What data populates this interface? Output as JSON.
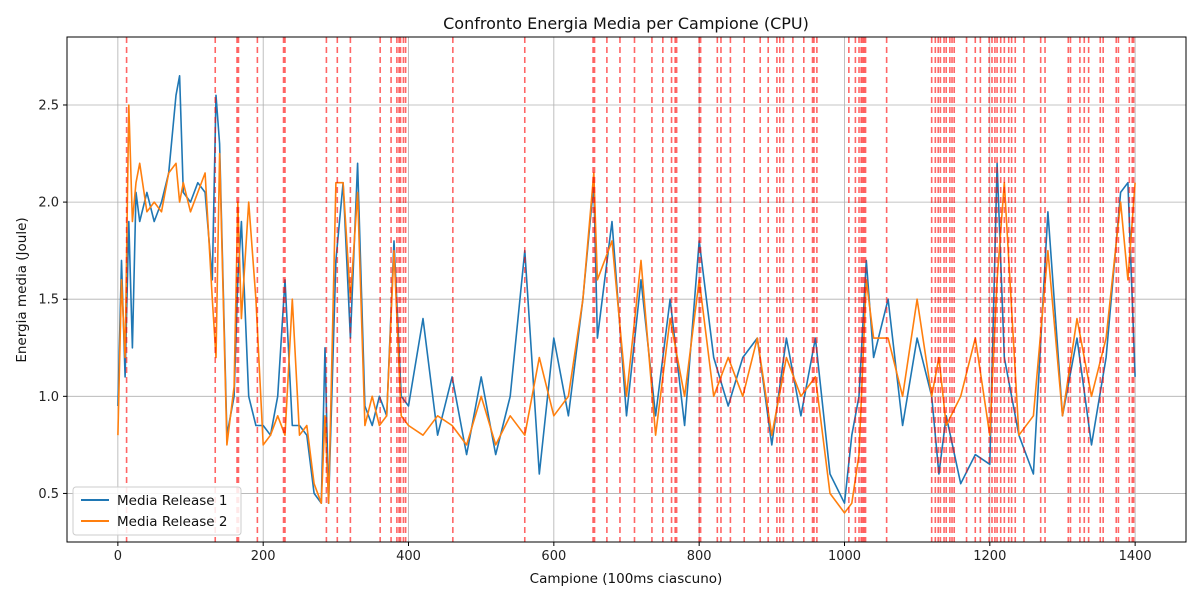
{
  "chart_data": {
    "type": "line",
    "title": "Confronto Energia Media per Campione (CPU)",
    "xlabel": "Campione (100ms ciascuno)",
    "ylabel": "Energia media (Joule)",
    "xlim": [
      -70,
      1470
    ],
    "ylim": [
      0.25,
      2.85
    ],
    "xticks": [
      0,
      200,
      400,
      600,
      800,
      1000,
      1200,
      1400
    ],
    "yticks": [
      0.5,
      1.0,
      1.5,
      2.0,
      2.5
    ],
    "xtick_labels": [
      "0",
      "200",
      "400",
      "600",
      "800",
      "1000",
      "1200",
      "1400"
    ],
    "ytick_labels": [
      "0.5",
      "1.0",
      "1.5",
      "2.0",
      "2.5"
    ],
    "grid": true,
    "legend_position": "lower-left",
    "series": [
      {
        "name": "Media Release 1",
        "color": "#1f77b4",
        "x": [
          0,
          5,
          10,
          15,
          20,
          25,
          30,
          40,
          50,
          60,
          70,
          80,
          85,
          90,
          100,
          110,
          120,
          130,
          135,
          140,
          150,
          160,
          165,
          170,
          180,
          190,
          200,
          210,
          220,
          230,
          240,
          250,
          260,
          270,
          280,
          285,
          290,
          300,
          310,
          320,
          330,
          340,
          350,
          360,
          370,
          380,
          390,
          400,
          420,
          440,
          460,
          480,
          500,
          520,
          540,
          560,
          580,
          600,
          620,
          640,
          655,
          660,
          680,
          700,
          720,
          740,
          760,
          780,
          800,
          820,
          840,
          860,
          880,
          900,
          920,
          940,
          960,
          980,
          1000,
          1010,
          1020,
          1030,
          1040,
          1060,
          1080,
          1100,
          1120,
          1130,
          1140,
          1160,
          1180,
          1200,
          1210,
          1220,
          1240,
          1260,
          1280,
          1300,
          1320,
          1340,
          1360,
          1380,
          1390,
          1400
        ],
        "values": [
          0.95,
          1.7,
          1.1,
          1.9,
          1.25,
          2.05,
          1.9,
          2.05,
          1.9,
          2.0,
          2.15,
          2.55,
          2.65,
          2.05,
          2.0,
          2.1,
          2.05,
          1.6,
          2.55,
          2.3,
          0.8,
          1.0,
          1.6,
          1.9,
          1.0,
          0.85,
          0.85,
          0.8,
          1.0,
          1.6,
          0.85,
          0.85,
          0.8,
          0.5,
          0.45,
          1.25,
          0.45,
          1.7,
          2.1,
          1.3,
          2.2,
          0.95,
          0.85,
          1.0,
          0.9,
          1.8,
          1.0,
          0.95,
          1.4,
          0.8,
          1.1,
          0.7,
          1.1,
          0.7,
          1.0,
          1.75,
          0.6,
          1.3,
          0.9,
          1.5,
          2.1,
          1.3,
          1.9,
          0.9,
          1.6,
          0.9,
          1.5,
          0.85,
          1.8,
          1.2,
          0.95,
          1.2,
          1.3,
          0.75,
          1.3,
          0.9,
          1.3,
          0.6,
          0.45,
          0.8,
          1.0,
          1.7,
          1.2,
          1.5,
          0.85,
          1.3,
          1.0,
          0.6,
          0.9,
          0.55,
          0.7,
          0.65,
          2.2,
          1.2,
          0.8,
          0.6,
          1.95,
          0.9,
          1.3,
          0.75,
          1.2,
          2.05,
          2.1,
          1.1
        ]
      },
      {
        "name": "Media Release 2",
        "color": "#ff7f0e",
        "x": [
          0,
          5,
          10,
          15,
          20,
          25,
          30,
          40,
          50,
          60,
          70,
          80,
          85,
          90,
          100,
          110,
          120,
          130,
          135,
          140,
          150,
          160,
          165,
          170,
          180,
          190,
          200,
          210,
          220,
          230,
          240,
          250,
          260,
          270,
          280,
          285,
          290,
          300,
          310,
          320,
          330,
          340,
          350,
          360,
          370,
          380,
          390,
          400,
          420,
          440,
          460,
          480,
          500,
          520,
          540,
          560,
          580,
          600,
          620,
          640,
          655,
          660,
          680,
          700,
          720,
          740,
          760,
          780,
          800,
          820,
          840,
          860,
          880,
          900,
          920,
          940,
          960,
          980,
          1000,
          1010,
          1020,
          1030,
          1040,
          1060,
          1080,
          1100,
          1120,
          1130,
          1140,
          1160,
          1180,
          1200,
          1210,
          1220,
          1240,
          1260,
          1280,
          1300,
          1320,
          1340,
          1360,
          1380,
          1390,
          1400
        ],
        "values": [
          0.8,
          1.6,
          1.2,
          2.5,
          1.9,
          2.1,
          2.2,
          1.95,
          2.0,
          1.95,
          2.15,
          2.2,
          2.0,
          2.1,
          1.95,
          2.05,
          2.15,
          1.5,
          1.2,
          2.25,
          0.75,
          1.05,
          2.0,
          1.4,
          2.0,
          1.5,
          0.75,
          0.8,
          0.9,
          0.8,
          1.5,
          0.8,
          0.85,
          0.55,
          0.45,
          0.9,
          0.45,
          2.1,
          2.1,
          1.5,
          2.05,
          0.85,
          1.0,
          0.85,
          0.9,
          1.75,
          0.9,
          0.85,
          0.8,
          0.9,
          0.85,
          0.75,
          1.0,
          0.75,
          0.9,
          0.8,
          1.2,
          0.9,
          1.0,
          1.5,
          2.15,
          1.6,
          1.8,
          1.0,
          1.7,
          0.8,
          1.4,
          1.0,
          1.6,
          1.0,
          1.2,
          1.0,
          1.3,
          0.8,
          1.2,
          1.0,
          1.1,
          0.5,
          0.4,
          0.45,
          0.7,
          1.6,
          1.3,
          1.3,
          1.0,
          1.5,
          1.0,
          1.2,
          0.85,
          1.0,
          1.3,
          0.8,
          1.6,
          2.1,
          0.8,
          0.9,
          1.75,
          0.9,
          1.4,
          1.0,
          1.3,
          2.0,
          1.6,
          2.1
        ]
      }
    ],
    "vlines": {
      "color": "#ff0000",
      "x": [
        12,
        134,
        164,
        166,
        192,
        228,
        230,
        287,
        302,
        320,
        361,
        376,
        384,
        387,
        389,
        393,
        396,
        461,
        560,
        654,
        656,
        673,
        691,
        711,
        735,
        750,
        762,
        767,
        769,
        800,
        802,
        825,
        830,
        843,
        862,
        884,
        895,
        907,
        911,
        916,
        929,
        944,
        956,
        958,
        962,
        1006,
        1015,
        1020,
        1023,
        1025,
        1027,
        1029,
        1058,
        1120,
        1125,
        1129,
        1132,
        1137,
        1140,
        1145,
        1148,
        1151,
        1168,
        1180,
        1187,
        1199,
        1203,
        1207,
        1210,
        1215,
        1220,
        1226,
        1230,
        1235,
        1247,
        1270,
        1276,
        1308,
        1311,
        1324,
        1330,
        1336,
        1352,
        1356,
        1374,
        1377,
        1392,
        1396,
        1398
      ]
    }
  }
}
